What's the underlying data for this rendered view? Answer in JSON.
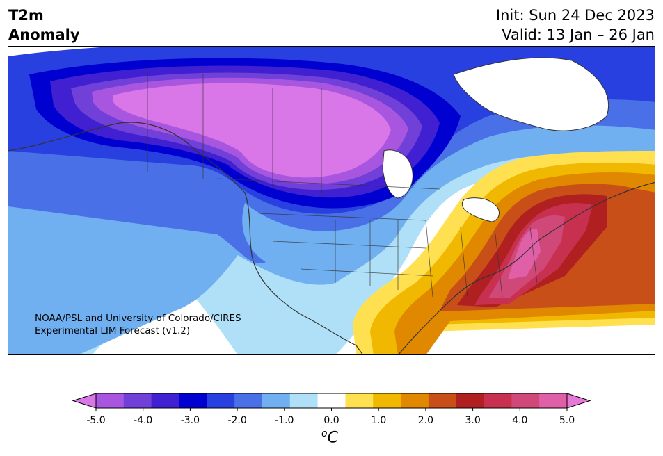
{
  "header": {
    "title_line1": "T2m",
    "title_line2": "Anomaly",
    "init": "Init: Sun 24 Dec 2023",
    "valid": "Valid: 13 Jan – 26 Jan"
  },
  "credit": {
    "line1": "NOAA/PSL and University of Colorado/CIRES",
    "line2": "Experimental LIM Forecast (v1.2)"
  },
  "colorbar": {
    "colors": [
      "#d977e8",
      "#a855e0",
      "#7040d8",
      "#4020d0",
      "#0000d0",
      "#2840e0",
      "#4a70e8",
      "#70b0f0",
      "#b0e0f8",
      "#ffffff",
      "#ffe050",
      "#f0b800",
      "#e08800",
      "#c85018",
      "#b02020",
      "#c83050",
      "#d04878",
      "#e060a8",
      "#e878d8"
    ],
    "tick_labels": [
      "-5.0",
      "-4.0",
      "-3.0",
      "-2.0",
      "-1.0",
      "0.0",
      "1.0",
      "2.0",
      "3.0",
      "4.0",
      "5.0"
    ],
    "units": "C",
    "units_sup": "o"
  },
  "map": {
    "region": "North America",
    "cold_anomaly_color": "#d977e8",
    "warm_anomaly_color": "#d04878"
  }
}
